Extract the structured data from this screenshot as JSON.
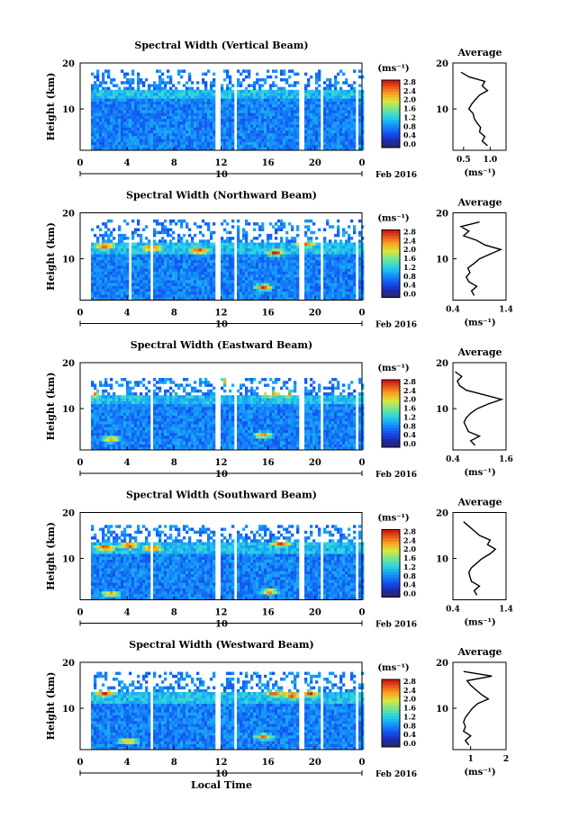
{
  "chart_data": [
    {
      "type": "heatmap",
      "title": "Spectral Width (Vertical Beam)",
      "ylabel": "Height (km)",
      "xticks": [
        "0",
        "4",
        "8",
        "12",
        "16",
        "20",
        "0"
      ],
      "yticks": [
        "10",
        "20"
      ],
      "date_label": "10",
      "month_label": "Feb 2016",
      "colorbar_unit": "(ms⁻¹)",
      "colorbar_ticks": [
        "0.0",
        "0.4",
        "0.8",
        "1.2",
        "1.6",
        "2.0",
        "2.4",
        "2.8"
      ],
      "gaps_hours": [
        [
          0.35,
          0.9
        ],
        [
          11.5,
          11.9
        ],
        [
          13.0,
          13.3
        ],
        [
          18.5,
          18.9
        ],
        [
          20.3,
          20.6
        ],
        [
          23.3,
          23.6
        ]
      ],
      "top_km": 18.5,
      "noise_band_km": [
        14.0,
        16.0
      ],
      "hot_spots": [],
      "profile": {
        "title": "Average",
        "xlabel": "(ms⁻¹)",
        "xticks": [
          "0.5",
          "1.0"
        ],
        "xrange": [
          0.3,
          1.3
        ],
        "yticks": [
          "10",
          "20"
        ],
        "height_km": [
          2.0,
          3.0,
          4.0,
          5.0,
          6.0,
          7.0,
          8.0,
          9.0,
          10.0,
          11.0,
          12.0,
          13.0,
          14.0,
          15.0,
          16.0,
          17.0,
          18.0
        ],
        "width_ms": [
          0.95,
          0.85,
          0.9,
          0.8,
          0.82,
          0.75,
          0.7,
          0.68,
          0.6,
          0.65,
          0.72,
          0.8,
          0.95,
          0.85,
          0.9,
          0.6,
          0.45
        ]
      }
    },
    {
      "type": "heatmap",
      "title": "Spectral Width (Northward Beam)",
      "ylabel": "Height (km)",
      "xticks": [
        "0",
        "4",
        "8",
        "12",
        "16",
        "20",
        "0"
      ],
      "yticks": [
        "10",
        "20"
      ],
      "date_label": "10",
      "month_label": "Feb 2016",
      "colorbar_unit": "(ms⁻¹)",
      "colorbar_ticks": [
        "0.0",
        "0.4",
        "0.8",
        "1.2",
        "1.6",
        "2.0",
        "2.4",
        "2.8"
      ],
      "gaps_hours": [
        [
          0.35,
          0.8
        ],
        [
          4.0,
          4.2
        ],
        [
          5.8,
          6.1
        ],
        [
          11.5,
          11.9
        ],
        [
          13.0,
          13.3
        ],
        [
          18.5,
          18.9
        ],
        [
          20.3,
          20.6
        ],
        [
          23.3,
          23.6
        ]
      ],
      "top_km": 18.0,
      "noise_band_km": [
        13.0,
        14.5
      ],
      "hot_spots": [
        [
          2.0,
          12.5
        ],
        [
          6.0,
          12.0
        ],
        [
          10.0,
          11.5
        ],
        [
          16.5,
          11.0
        ],
        [
          15.5,
          3.5
        ],
        [
          19.0,
          13.0
        ]
      ],
      "profile": {
        "title": "Average",
        "xlabel": "(ms⁻¹)",
        "xticks": [
          "0.4",
          "1.4"
        ],
        "xrange": [
          0.4,
          1.4
        ],
        "yticks": [
          "10",
          "20"
        ],
        "height_km": [
          2.0,
          3.0,
          4.0,
          5.0,
          6.0,
          7.0,
          8.0,
          9.0,
          10.0,
          11.0,
          12.0,
          13.0,
          14.0,
          15.0,
          16.0,
          17.0,
          18.0
        ],
        "width_ms": [
          0.8,
          0.75,
          0.85,
          0.7,
          0.65,
          0.72,
          0.68,
          0.8,
          0.9,
          1.1,
          1.3,
          1.0,
          0.85,
          0.6,
          0.7,
          0.55,
          0.9
        ]
      }
    },
    {
      "type": "heatmap",
      "title": "Spectral Width (Eastward Beam)",
      "ylabel": "Height (km)",
      "xticks": [
        "0",
        "4",
        "8",
        "12",
        "16",
        "20",
        "0"
      ],
      "yticks": [
        "10",
        "20"
      ],
      "date_label": "10",
      "month_label": "Feb 2016",
      "colorbar_unit": "(ms⁻¹)",
      "colorbar_ticks": [
        "0.0",
        "0.4",
        "0.8",
        "1.2",
        "1.6",
        "2.0",
        "2.4",
        "2.8"
      ],
      "gaps_hours": [
        [
          0.35,
          0.8
        ],
        [
          5.8,
          6.1
        ],
        [
          11.5,
          11.9
        ],
        [
          13.0,
          13.3
        ],
        [
          18.5,
          18.9
        ],
        [
          20.3,
          20.6
        ],
        [
          23.3,
          23.6
        ]
      ],
      "top_km": 16.5,
      "noise_band_km": [
        12.5,
        14.0
      ],
      "hot_spots": [
        [
          1.0,
          13.0
        ],
        [
          2.5,
          3.0
        ],
        [
          15.5,
          4.0
        ],
        [
          16.0,
          13.0
        ],
        [
          17.5,
          13.0
        ],
        [
          12.5,
          15.5
        ]
      ],
      "profile": {
        "title": "Average",
        "xlabel": "(ms⁻¹)",
        "xticks": [
          "0.4",
          "1.6"
        ],
        "xrange": [
          0.4,
          1.6
        ],
        "yticks": [
          "10",
          "20"
        ],
        "height_km": [
          2.0,
          3.0,
          4.0,
          5.0,
          6.0,
          7.0,
          8.0,
          9.0,
          10.0,
          11.0,
          12.0,
          13.0,
          14.0,
          15.0,
          16.0,
          17.0,
          18.0
        ],
        "width_ms": [
          0.9,
          0.8,
          1.0,
          0.75,
          0.7,
          0.65,
          0.7,
          0.8,
          0.95,
          1.2,
          1.5,
          1.1,
          0.7,
          0.55,
          0.5,
          0.6,
          0.45
        ]
      }
    },
    {
      "type": "heatmap",
      "title": "Spectral Width (Southward Beam)",
      "ylabel": "Height (km)",
      "xticks": [
        "0",
        "4",
        "8",
        "12",
        "16",
        "20",
        "0"
      ],
      "yticks": [
        "10",
        "20"
      ],
      "date_label": "10",
      "month_label": "Feb 2016",
      "colorbar_unit": "(ms⁻¹)",
      "colorbar_ticks": [
        "0.0",
        "0.4",
        "0.8",
        "1.2",
        "1.6",
        "2.0",
        "2.4",
        "2.8"
      ],
      "gaps_hours": [
        [
          0.35,
          0.8
        ],
        [
          5.8,
          6.1
        ],
        [
          11.5,
          11.9
        ],
        [
          13.0,
          13.3
        ],
        [
          18.5,
          18.9
        ],
        [
          20.3,
          20.6
        ],
        [
          23.3,
          23.6
        ]
      ],
      "top_km": 17.0,
      "noise_band_km": [
        13.0,
        15.0
      ],
      "hot_spots": [
        [
          2.0,
          12.0
        ],
        [
          4.0,
          12.5
        ],
        [
          6.0,
          12.0
        ],
        [
          16.0,
          2.5
        ],
        [
          17.0,
          13.0
        ],
        [
          2.5,
          2.0
        ]
      ],
      "profile": {
        "title": "Average",
        "xlabel": "(ms⁻¹)",
        "xticks": [
          "0.4",
          "1.4"
        ],
        "xrange": [
          0.4,
          1.4
        ],
        "yticks": [
          "10",
          "20"
        ],
        "height_km": [
          2.0,
          3.0,
          4.0,
          5.0,
          6.0,
          7.0,
          8.0,
          9.0,
          10.0,
          11.0,
          12.0,
          13.0,
          14.0,
          15.0,
          16.0,
          17.0,
          18.0
        ],
        "width_ms": [
          0.85,
          0.8,
          0.9,
          0.75,
          0.72,
          0.7,
          0.75,
          0.85,
          0.95,
          1.1,
          1.2,
          1.05,
          1.1,
          0.9,
          0.8,
          0.7,
          0.6
        ]
      }
    },
    {
      "type": "heatmap",
      "title": "Spectral Width (Westward Beam)",
      "ylabel": "Height (km)",
      "xlabel": "Local Time",
      "xticks": [
        "0",
        "4",
        "8",
        "12",
        "16",
        "20",
        "0"
      ],
      "yticks": [
        "10",
        "20"
      ],
      "date_label": "10",
      "month_label": "Feb 2016",
      "colorbar_unit": "(ms⁻¹)",
      "colorbar_ticks": [
        "0.0",
        "0.4",
        "0.8",
        "1.2",
        "1.6",
        "2.0",
        "2.4",
        "2.8"
      ],
      "gaps_hours": [
        [
          0.35,
          0.8
        ],
        [
          5.8,
          6.1
        ],
        [
          11.5,
          11.9
        ],
        [
          13.0,
          13.3
        ],
        [
          18.5,
          18.9
        ],
        [
          20.3,
          20.6
        ],
        [
          23.3,
          23.6
        ]
      ],
      "top_km": 17.5,
      "noise_band_km": [
        13.0,
        14.5
      ],
      "hot_spots": [
        [
          2.0,
          13.0
        ],
        [
          15.5,
          3.5
        ],
        [
          16.5,
          13.0
        ],
        [
          18.0,
          12.5
        ],
        [
          19.5,
          13.0
        ],
        [
          4.0,
          2.5
        ]
      ],
      "profile": {
        "title": "Average",
        "xlabel": "(ms⁻¹)",
        "xticks": [
          "1",
          "2"
        ],
        "xrange": [
          0.5,
          2.0
        ],
        "yticks": [
          "10",
          "20"
        ],
        "height_km": [
          2.0,
          3.0,
          4.0,
          5.0,
          6.0,
          7.0,
          8.0,
          9.0,
          10.0,
          11.0,
          12.0,
          13.0,
          14.0,
          15.0,
          16.0,
          17.0,
          18.0
        ],
        "width_ms": [
          0.95,
          0.85,
          1.0,
          0.8,
          0.85,
          0.8,
          0.85,
          0.95,
          1.05,
          1.2,
          1.5,
          1.3,
          1.15,
          1.0,
          0.9,
          1.6,
          0.8
        ]
      }
    }
  ]
}
